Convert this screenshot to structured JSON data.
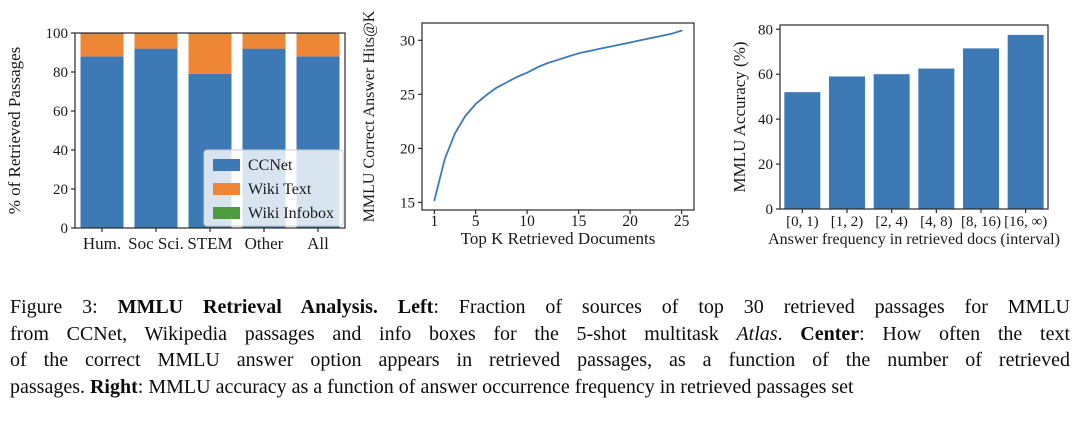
{
  "caption": {
    "lines": [
      [
        {
          "t": "Figure 3: ",
          "f": "n"
        },
        {
          "t": "MMLU Retrieval Analysis. Left",
          "f": "b"
        },
        {
          "t": ": Fraction of sources of top 30 retrieved passages for MMLU",
          "f": "n"
        }
      ],
      [
        {
          "t": "from CCNet, Wikipedia passages and info boxes for the 5-shot multitask ",
          "f": "n"
        },
        {
          "t": "Atlas",
          "f": "i"
        },
        {
          "t": ". ",
          "f": "n"
        },
        {
          "t": "Center",
          "f": "b"
        },
        {
          "t": ": How often the text",
          "f": "n"
        }
      ],
      [
        {
          "t": "of the correct MMLU answer option appears in retrieved passages, as a function of the number of retrieved",
          "f": "n"
        }
      ],
      [
        {
          "t": "passages. ",
          "f": "n"
        },
        {
          "t": "Right",
          "f": "b"
        },
        {
          "t": ": MMLU accuracy as a function of answer occurrence frequency in retrieved passages set",
          "f": "n"
        }
      ]
    ]
  },
  "chart_data": [
    {
      "id": "left",
      "type": "bar",
      "subtype": "stacked",
      "title": "",
      "xlabel": "",
      "ylabel": "% of Retrieved Passages",
      "categories": [
        "Hum.",
        "Soc Sci.",
        "STEM",
        "Other",
        "All"
      ],
      "series": [
        {
          "name": "CCNet",
          "color": "#3d79b5",
          "values": [
            88,
            92,
            79,
            92,
            88
          ]
        },
        {
          "name": "Wiki Text",
          "color": "#ef8636",
          "values": [
            11.4,
            7.4,
            20.4,
            7.4,
            11.4
          ]
        },
        {
          "name": "Wiki Infobox",
          "color": "#4f9b40",
          "values": [
            0.6,
            0.6,
            0.6,
            0.6,
            0.6
          ]
        }
      ],
      "ylim": [
        0,
        100
      ],
      "yticks": [
        0,
        20,
        40,
        60,
        80,
        100
      ],
      "grid": false,
      "legend": {
        "position": "lower right",
        "entries": [
          "CCNet",
          "Wiki Text",
          "Wiki Infobox"
        ]
      }
    },
    {
      "id": "center",
      "type": "line",
      "title": "",
      "xlabel": "Top K Retrieved Documents",
      "ylabel": "MMLU Correct Answer Hits@K",
      "x": [
        1,
        2,
        3,
        4,
        5,
        6,
        7,
        8,
        9,
        10,
        11,
        12,
        13,
        14,
        15,
        16,
        17,
        18,
        19,
        20,
        21,
        22,
        23,
        24,
        25
      ],
      "y": [
        15.2,
        19.0,
        21.4,
        23.0,
        24.1,
        24.9,
        25.6,
        26.1,
        26.6,
        27.0,
        27.5,
        27.9,
        28.2,
        28.5,
        28.8,
        29.0,
        29.2,
        29.4,
        29.6,
        29.8,
        30.0,
        30.2,
        30.4,
        30.6,
        30.9
      ],
      "xticks": [
        1,
        5,
        10,
        15,
        20,
        25
      ],
      "yticks": [
        15,
        20,
        25,
        30
      ],
      "xlim": [
        -0.2,
        26.2
      ],
      "ylim": [
        14.3,
        31.6
      ],
      "grid": false,
      "color": "#3d79b5"
    },
    {
      "id": "right",
      "type": "bar",
      "title": "",
      "xlabel": "Answer frequency in retrieved docs (interval)",
      "ylabel": "MMLU Accuracy (%)",
      "categories": [
        "[0, 1)",
        "[1, 2)",
        "[2, 4)",
        "[4, 8)",
        "[8, 16)",
        "[16, ∞)"
      ],
      "values": [
        52,
        59,
        60,
        62.5,
        71.5,
        77.5
      ],
      "yticks": [
        0,
        20,
        40,
        60,
        80
      ],
      "ylim": [
        0,
        81.9
      ],
      "grid": false,
      "color": "#3d79b5"
    }
  ]
}
